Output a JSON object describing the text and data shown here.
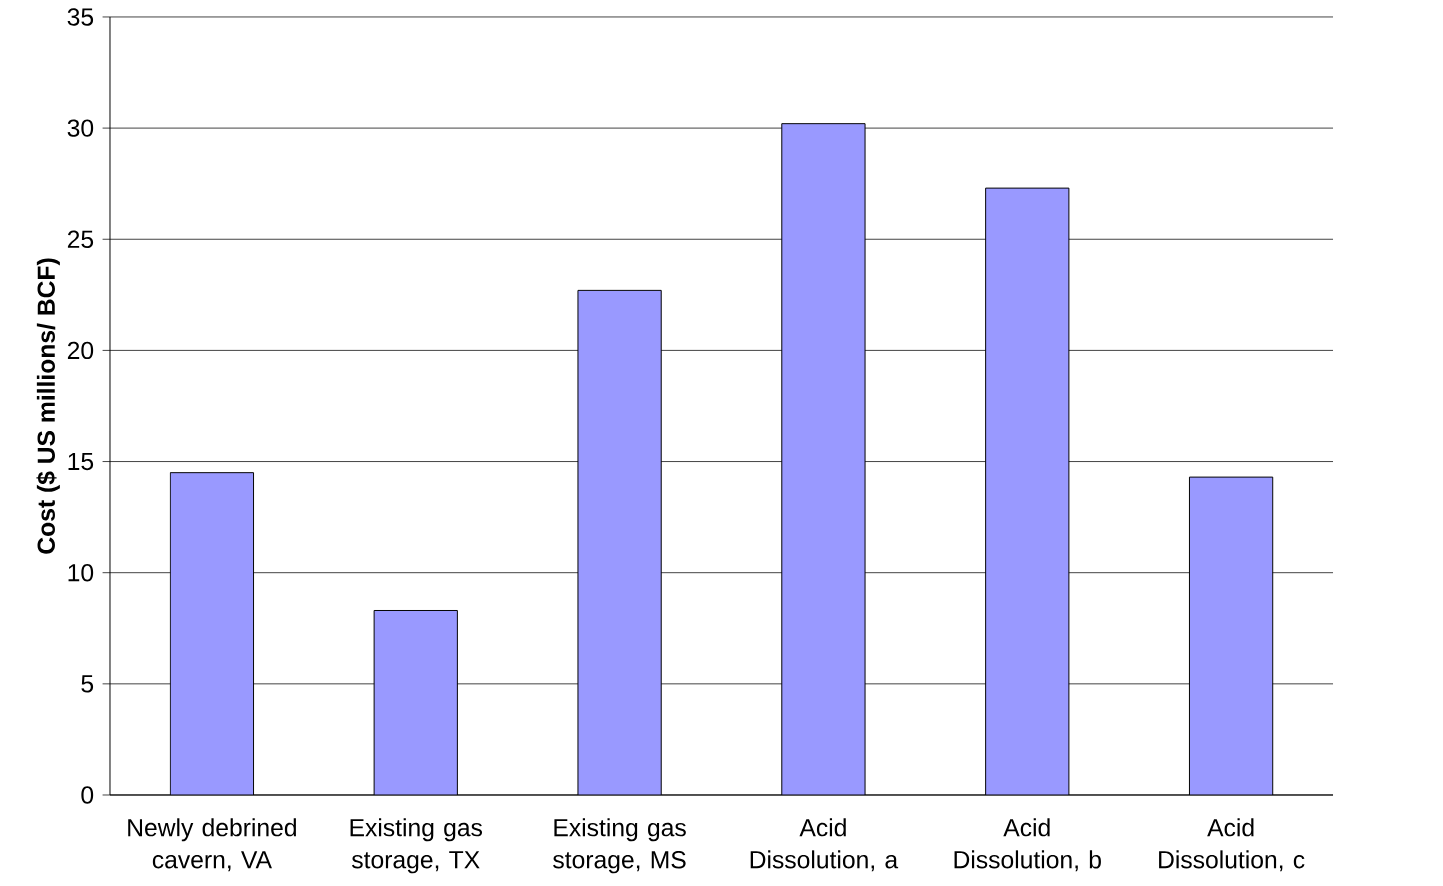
{
  "chart_data": {
    "type": "bar",
    "ylabel": "Cost ($ US millions/ BCF)",
    "categories": [
      "Newly debrined cavern, VA",
      "Existing gas storage, TX",
      "Existing gas storage, MS",
      "Acid Dissolution, a",
      "Acid Dissolution, b",
      "Acid Dissolution, c"
    ],
    "values": [
      14.5,
      8.3,
      22.7,
      30.2,
      27.3,
      14.3
    ],
    "color": "#9999ff",
    "ylim": [
      0,
      35
    ],
    "yticks": [
      0,
      5,
      10,
      15,
      20,
      25,
      30,
      35
    ],
    "grid": "y"
  }
}
